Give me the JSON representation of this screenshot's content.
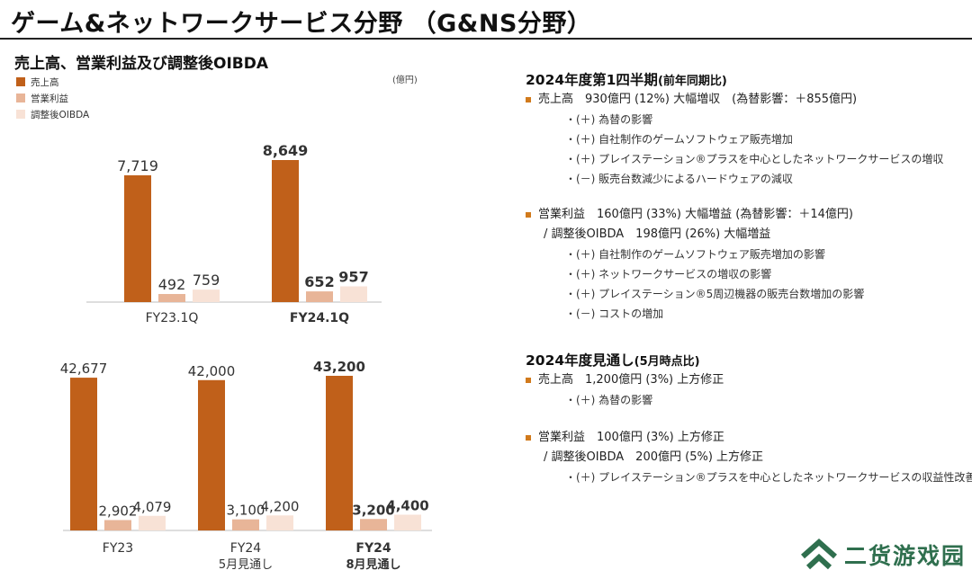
{
  "page": {
    "title": "ゲーム&ネットワークサービス分野 （G&NS分野）",
    "subtitle": "売上高、営業利益及び調整後OIBDA",
    "unit": "(億円)"
  },
  "legend": [
    {
      "label": "売上高",
      "color": "#c0601a"
    },
    {
      "label": "営業利益",
      "color": "#e8b598"
    },
    {
      "label": "調整後OIBDA",
      "color": "#f8e2d6"
    }
  ],
  "chart_data": [
    {
      "type": "bar",
      "categories": [
        "FY23.1Q",
        "FY24.1Q"
      ],
      "category_sublabels": [
        "",
        ""
      ],
      "bold_categories": [
        false,
        true
      ],
      "series": [
        {
          "name": "売上高",
          "values": [
            7719,
            8649
          ],
          "labels": [
            "7,719",
            "8,649"
          ]
        },
        {
          "name": "営業利益",
          "values": [
            492,
            652
          ],
          "labels": [
            "492",
            "652"
          ]
        },
        {
          "name": "調整後OIBDA",
          "values": [
            759,
            957
          ],
          "labels": [
            "759",
            "957"
          ]
        }
      ]
    },
    {
      "type": "bar",
      "categories": [
        "FY23",
        "FY24",
        "FY24"
      ],
      "category_sublabels": [
        "",
        "5月見通し",
        "8月見通し"
      ],
      "bold_categories": [
        false,
        false,
        true
      ],
      "series": [
        {
          "name": "売上高",
          "values": [
            42677,
            42000,
            43200
          ],
          "labels": [
            "42,677",
            "42,000",
            "43,200"
          ]
        },
        {
          "name": "営業利益",
          "values": [
            2902,
            3100,
            3200
          ],
          "labels": [
            "2,902",
            "3,100",
            "3,200"
          ]
        },
        {
          "name": "調整後OIBDA",
          "values": [
            4079,
            4200,
            4400
          ],
          "labels": [
            "4,079",
            "4,200",
            "4,400"
          ]
        }
      ]
    }
  ],
  "q1": {
    "heading": "2024年度第1四半期",
    "heading_paren": "(前年同期比)",
    "sales": "売上高　930億円 (12%) 大幅増収　(為替影響：＋855億円)",
    "sales_details": [
      "・(＋) 為替の影響",
      "・(＋) 自社制作のゲームソフトウェア販売増加",
      "・(＋) プレイステーション®プラスを中心としたネットワークサービスの増収",
      "・(－) 販売台数減少によるハードウェアの減収"
    ],
    "op": "営業利益　160億円 (33%) 大幅増益 (為替影響：＋14億円)",
    "op_sub": "/ 調整後OIBDA　198億円 (26%) 大幅増益",
    "op_details": [
      "・(＋) 自社制作のゲームソフトウェア販売増加の影響",
      "・(＋) ネットワークサービスの増収の影響",
      "・(＋) プレイステーション®5周辺機器の販売台数増加の影響",
      "・(－) コストの増加"
    ]
  },
  "fy": {
    "heading": "2024年度見通し",
    "heading_paren": "(5月時点比)",
    "sales": "売上高　1,200億円 (3%) 上方修正",
    "sales_details": [
      "・(＋) 為替の影響"
    ],
    "op": "営業利益　100億円 (3%) 上方修正",
    "op_sub": "/ 調整後OIBDA　200億円 (5%) 上方修正",
    "op_details": [
      "・(＋) プレイステーション®プラスを中心としたネットワークサービスの収益性改善"
    ]
  },
  "watermark": {
    "text": "二货游戏园",
    "icon": "chevron-logo-icon",
    "color": "#2f6f4e"
  }
}
